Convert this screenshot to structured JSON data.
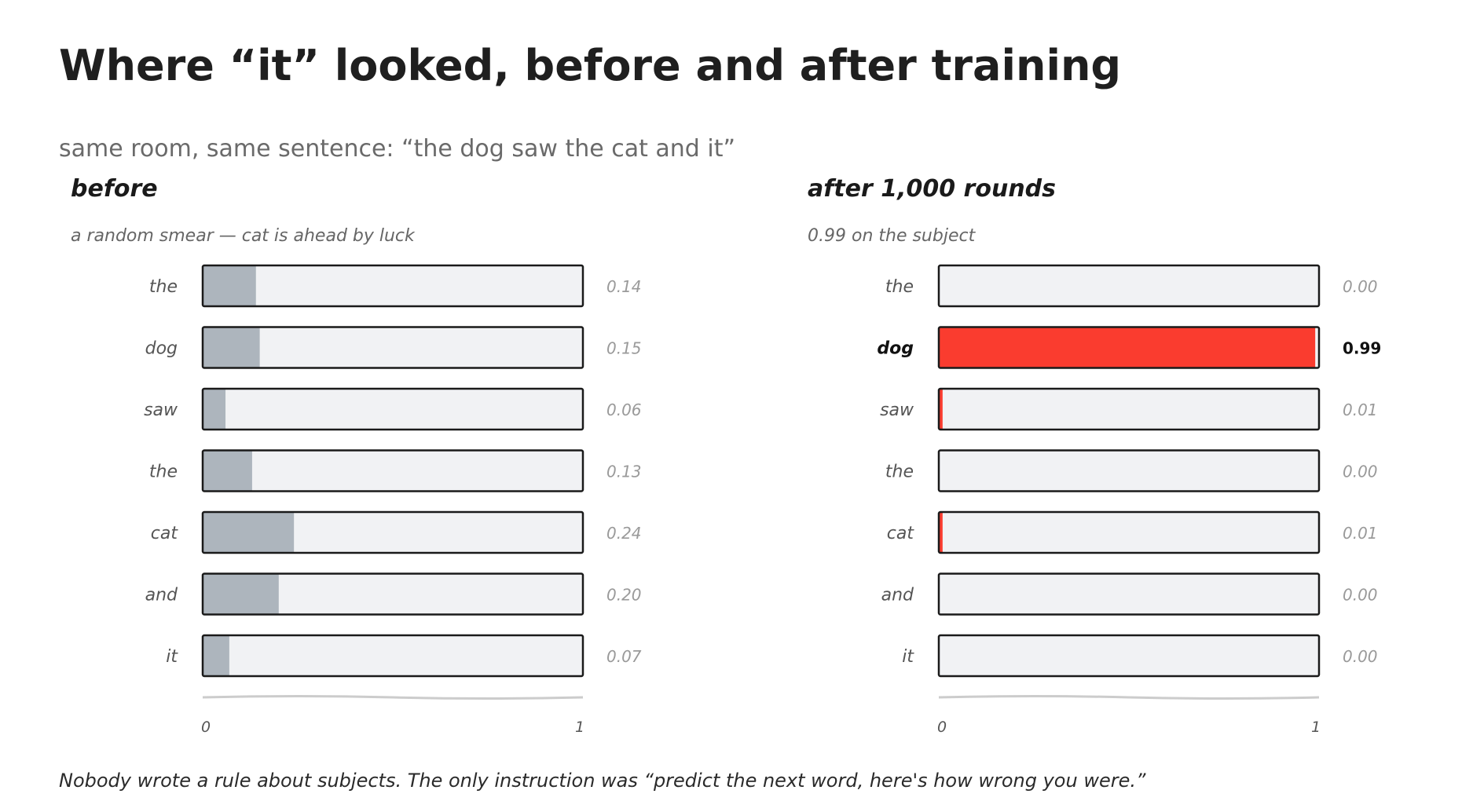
{
  "title": "Where “it” looked, before and after training",
  "subtitle": "same room, same sentence: “the dog saw the cat and it”",
  "footer": "Nobody wrote a rule about subjects. The only instruction was “predict the next word, here's how wrong you were.”",
  "colors": {
    "track": "#f1f2f4",
    "outline": "#1a1a1a",
    "neutral_fill": "#adb5bd",
    "highlight_fill": "#fa3c2f",
    "axis": "#cccccc"
  },
  "chart_data": [
    {
      "type": "bar",
      "orientation": "horizontal",
      "title": "before",
      "subtitle": "a random smear — cat is ahead by luck",
      "categories": [
        "the",
        "dog",
        "saw",
        "the",
        "cat",
        "and",
        "it"
      ],
      "values": [
        0.14,
        0.15,
        0.06,
        0.13,
        0.24,
        0.2,
        0.07
      ],
      "value_labels": [
        "0.14",
        "0.15",
        "0.06",
        "0.13",
        "0.24",
        "0.20",
        "0.07"
      ],
      "highlight_index": null,
      "xlim": [
        0,
        1
      ],
      "xticks": [
        "0",
        "1"
      ]
    },
    {
      "type": "bar",
      "orientation": "horizontal",
      "title": "after 1,000 rounds",
      "subtitle": "0.99 on the subject",
      "categories": [
        "the",
        "dog",
        "saw",
        "the",
        "cat",
        "and",
        "it"
      ],
      "values": [
        0.0,
        0.99,
        0.01,
        0.0,
        0.01,
        0.0,
        0.0
      ],
      "value_labels": [
        "0.00",
        "0.99",
        "0.01",
        "0.00",
        "0.01",
        "0.00",
        "0.00"
      ],
      "highlight_index": 1,
      "xlim": [
        0,
        1
      ],
      "xticks": [
        "0",
        "1"
      ]
    }
  ]
}
